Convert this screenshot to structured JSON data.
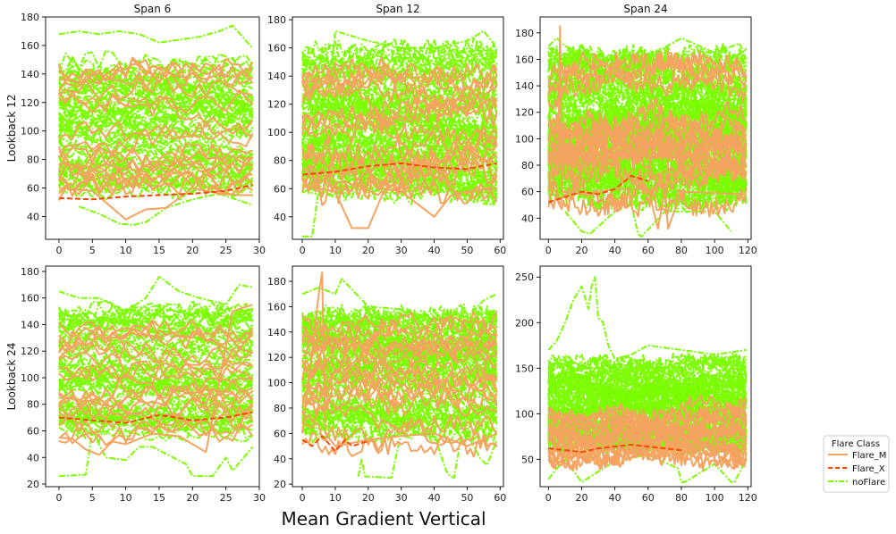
{
  "colors": {
    "Flare_M": "#f4a460",
    "Flare_X": "#ff4500",
    "noFlare": "#7cfc00"
  },
  "figure": {
    "xlabel": "Mean Gradient Vertical"
  },
  "legend": {
    "title": "Flare Class",
    "placement": "lower-right outside",
    "entries": [
      {
        "name": "Flare_M",
        "style": "solid",
        "color": "#f4a460"
      },
      {
        "name": "Flare_X",
        "style": "dashed",
        "color": "#ff4500"
      },
      {
        "name": "noFlare",
        "style": "dash-dot",
        "color": "#7cfc00"
      }
    ]
  },
  "chart_data": [
    {
      "type": "line",
      "title": "Span 6",
      "ylabel": "Lookback 12",
      "xlim": [
        -2,
        30
      ],
      "ylim": [
        24,
        180
      ],
      "xticks": [
        0,
        5,
        10,
        15,
        20,
        25,
        30
      ],
      "yticks": [
        40,
        60,
        80,
        100,
        120,
        140,
        160,
        180
      ],
      "grid": false,
      "series": [
        {
          "name": "noFlare",
          "color": "#7cfc00",
          "style": "dash-dot",
          "band": [
            58,
            150
          ],
          "center": 104,
          "count": 70,
          "n": 30
        },
        {
          "name": "noFlare",
          "color": "#7cfc00",
          "style": "dash-dot",
          "x": [
            0,
            3,
            6,
            9,
            12,
            15,
            18,
            21,
            24,
            26,
            29
          ],
          "y": [
            168,
            170,
            168,
            170,
            168,
            162,
            164,
            166,
            170,
            174,
            158
          ]
        },
        {
          "name": "noFlare",
          "color": "#7cfc00",
          "style": "dash-dot",
          "x": [
            3,
            6,
            9,
            11,
            13,
            16,
            20,
            24,
            29
          ],
          "y": [
            47,
            42,
            35,
            34,
            36,
            46,
            52,
            56,
            48
          ]
        },
        {
          "name": "Flare_M",
          "color": "#f4a460",
          "style": "solid",
          "band": [
            55,
            145
          ],
          "center": 100,
          "count": 18,
          "n": 30
        },
        {
          "name": "Flare_M",
          "color": "#f4a460",
          "style": "solid",
          "x": [
            0,
            5,
            10,
            13,
            16,
            20,
            24,
            27,
            29
          ],
          "y": [
            60,
            58,
            38,
            45,
            46,
            60,
            56,
            55,
            55
          ]
        },
        {
          "name": "Flare_X",
          "color": "#ff4500",
          "style": "dashed",
          "x": [
            0,
            5,
            10,
            15,
            20,
            25,
            29
          ],
          "y": [
            53,
            52,
            54,
            55,
            56,
            58,
            62
          ]
        }
      ]
    },
    {
      "type": "line",
      "title": "Span 12",
      "ylabel": "",
      "xlim": [
        -3,
        61
      ],
      "ylim": [
        24,
        182
      ],
      "xticks": [
        0,
        10,
        20,
        30,
        40,
        50,
        60
      ],
      "yticks": [
        40,
        60,
        80,
        100,
        120,
        140,
        160,
        180
      ],
      "grid": false,
      "series": [
        {
          "name": "noFlare",
          "color": "#7cfc00",
          "style": "dash-dot",
          "band": [
            55,
            160
          ],
          "center": 108,
          "count": 70,
          "n": 60
        },
        {
          "name": "noFlare",
          "color": "#7cfc00",
          "style": "dash-dot",
          "x": [
            0,
            3,
            5,
            10,
            20,
            30,
            40,
            50,
            55,
            59
          ],
          "y": [
            26,
            26,
            60,
            172,
            165,
            160,
            160,
            165,
            172,
            160
          ]
        },
        {
          "name": "Flare_M",
          "color": "#f4a460",
          "style": "solid",
          "band": [
            55,
            150
          ],
          "center": 100,
          "count": 18,
          "n": 60
        },
        {
          "name": "Flare_M",
          "color": "#f4a460",
          "style": "solid",
          "x": [
            0,
            10,
            15,
            20,
            25,
            30,
            40,
            45,
            50,
            59
          ],
          "y": [
            62,
            58,
            32,
            32,
            60,
            58,
            40,
            55,
            58,
            60
          ]
        },
        {
          "name": "Flare_X",
          "color": "#ff4500",
          "style": "dashed",
          "x": [
            0,
            10,
            20,
            30,
            40,
            50,
            59
          ],
          "y": [
            70,
            72,
            76,
            78,
            75,
            74,
            78
          ]
        }
      ]
    },
    {
      "type": "line",
      "title": "Span 24",
      "ylabel": "",
      "xlim": [
        -5,
        122
      ],
      "ylim": [
        24,
        192
      ],
      "xticks": [
        0,
        20,
        40,
        60,
        80,
        100,
        120
      ],
      "yticks": [
        40,
        60,
        80,
        100,
        120,
        140,
        160,
        180
      ],
      "grid": false,
      "series": [
        {
          "name": "noFlare",
          "color": "#7cfc00",
          "style": "dash-dot",
          "band": [
            52,
            165
          ],
          "center": 110,
          "count": 70,
          "n": 120
        },
        {
          "name": "noFlare",
          "color": "#7cfc00",
          "style": "dash-dot",
          "x": [
            0,
            5,
            10,
            20,
            40,
            60,
            80,
            100,
            115,
            119
          ],
          "y": [
            170,
            176,
            170,
            165,
            160,
            162,
            176,
            165,
            172,
            160
          ]
        },
        {
          "name": "noFlare",
          "color": "#7cfc00",
          "style": "dash-dot",
          "x": [
            10,
            20,
            25,
            40,
            50,
            54,
            56,
            70,
            100,
            110
          ],
          "y": [
            45,
            30,
            28,
            45,
            50,
            28,
            26,
            45,
            45,
            30
          ]
        },
        {
          "name": "Flare_M",
          "color": "#f4a460",
          "style": "solid",
          "band": [
            48,
            160
          ],
          "center": 100,
          "count": 18,
          "n": 120
        },
        {
          "name": "Flare_M",
          "color": "#f4a460",
          "style": "solid",
          "x": [
            0,
            3,
            6,
            7,
            8,
            20,
            40,
            60,
            66,
            70,
            72,
            80,
            119
          ],
          "y": [
            48,
            70,
            88,
            185,
            60,
            58,
            62,
            62,
            32,
            62,
            32,
            60,
            58
          ]
        },
        {
          "name": "Flare_X",
          "color": "#ff4500",
          "style": "dashed",
          "x": [
            0,
            10,
            20,
            30,
            40,
            50,
            60
          ],
          "y": [
            52,
            56,
            60,
            58,
            62,
            72,
            68
          ]
        }
      ]
    },
    {
      "type": "line",
      "title": "",
      "ylabel": "Lookback 24",
      "xlim": [
        -2,
        30
      ],
      "ylim": [
        18,
        184
      ],
      "xticks": [
        0,
        5,
        10,
        15,
        20,
        25,
        30
      ],
      "yticks": [
        20,
        40,
        60,
        80,
        100,
        120,
        140,
        160,
        180
      ],
      "grid": false,
      "series": [
        {
          "name": "noFlare",
          "color": "#7cfc00",
          "style": "dash-dot",
          "band": [
            58,
            152
          ],
          "center": 106,
          "count": 70,
          "n": 30
        },
        {
          "name": "noFlare",
          "color": "#7cfc00",
          "style": "dash-dot",
          "x": [
            0,
            3,
            6,
            10,
            13,
            15,
            18,
            21,
            25,
            27,
            29
          ],
          "y": [
            165,
            160,
            160,
            150,
            160,
            176,
            165,
            160,
            155,
            170,
            168
          ]
        },
        {
          "name": "noFlare",
          "color": "#7cfc00",
          "style": "dash-dot",
          "x": [
            0,
            4,
            5,
            7,
            10,
            12,
            14,
            19,
            20,
            23,
            25,
            26,
            29
          ],
          "y": [
            26,
            27,
            60,
            40,
            38,
            48,
            48,
            35,
            26,
            26,
            40,
            30,
            48
          ]
        },
        {
          "name": "Flare_M",
          "color": "#f4a460",
          "style": "solid",
          "band": [
            52,
            150
          ],
          "center": 100,
          "count": 18,
          "n": 30
        },
        {
          "name": "Flare_M",
          "color": "#f4a460",
          "style": "solid",
          "x": [
            0,
            2,
            4,
            6,
            8,
            10,
            14,
            18,
            22,
            26,
            29
          ],
          "y": [
            55,
            54,
            46,
            42,
            52,
            50,
            58,
            56,
            44,
            150,
            155
          ]
        },
        {
          "name": "Flare_X",
          "color": "#ff4500",
          "style": "dashed",
          "x": [
            0,
            5,
            10,
            15,
            20,
            25,
            29
          ],
          "y": [
            70,
            68,
            66,
            72,
            68,
            70,
            74
          ]
        }
      ]
    },
    {
      "type": "line",
      "title": "",
      "ylabel": "",
      "xlim": [
        -3,
        61
      ],
      "ylim": [
        18,
        192
      ],
      "xticks": [
        0,
        10,
        20,
        30,
        40,
        50,
        60
      ],
      "yticks": [
        20,
        40,
        60,
        80,
        100,
        120,
        140,
        160,
        180
      ],
      "grid": false,
      "series": [
        {
          "name": "noFlare",
          "color": "#7cfc00",
          "style": "dash-dot",
          "band": [
            58,
            155
          ],
          "center": 106,
          "count": 70,
          "n": 60
        },
        {
          "name": "noFlare",
          "color": "#7cfc00",
          "style": "dash-dot",
          "x": [
            0,
            5,
            10,
            12,
            20,
            30,
            40,
            50,
            55,
            59
          ],
          "y": [
            170,
            175,
            170,
            182,
            160,
            158,
            150,
            152,
            165,
            170
          ]
        },
        {
          "name": "noFlare",
          "color": "#7cfc00",
          "style": "dash-dot",
          "x": [
            17,
            18,
            19,
            20,
            27,
            30,
            40,
            44,
            46,
            48,
            50,
            54,
            56,
            59
          ],
          "y": [
            26,
            40,
            26,
            26,
            25,
            60,
            58,
            28,
            25,
            55,
            60,
            40,
            35,
            55
          ]
        },
        {
          "name": "Flare_M",
          "color": "#f4a460",
          "style": "solid",
          "band": [
            48,
            150
          ],
          "center": 100,
          "count": 18,
          "n": 60
        },
        {
          "name": "Flare_M",
          "color": "#f4a460",
          "style": "solid",
          "x": [
            0,
            5,
            6,
            7,
            10,
            20,
            30,
            40,
            50,
            59
          ],
          "y": [
            60,
            170,
            187,
            60,
            50,
            55,
            58,
            60,
            50,
            60
          ]
        },
        {
          "name": "Flare_X",
          "color": "#ff4500",
          "style": "dashed",
          "x": [
            0,
            3,
            6,
            8,
            10,
            13,
            15,
            20
          ],
          "y": [
            55,
            50,
            58,
            52,
            46,
            55,
            50,
            54
          ]
        }
      ]
    },
    {
      "type": "line",
      "title": "",
      "ylabel": "",
      "xlim": [
        -5,
        122
      ],
      "ylim": [
        20,
        262
      ],
      "xticks": [
        0,
        20,
        40,
        60,
        80,
        100,
        120
      ],
      "yticks": [
        50,
        100,
        150,
        200,
        250
      ],
      "grid": false,
      "series": [
        {
          "name": "noFlare",
          "color": "#7cfc00",
          "style": "dash-dot",
          "band": [
            62,
            160
          ],
          "center": 110,
          "count": 70,
          "n": 120
        },
        {
          "name": "noFlare",
          "color": "#7cfc00",
          "style": "dash-dot",
          "x": [
            0,
            5,
            10,
            15,
            20,
            24,
            26,
            28,
            30,
            33,
            36,
            40,
            50,
            60,
            80,
            100,
            119
          ],
          "y": [
            170,
            180,
            200,
            225,
            240,
            215,
            240,
            250,
            205,
            200,
            175,
            160,
            165,
            175,
            170,
            165,
            170
          ]
        },
        {
          "name": "noFlare",
          "color": "#7cfc00",
          "style": "dash-dot",
          "x": [
            0,
            5,
            10,
            20,
            40,
            60,
            78,
            80,
            82,
            100,
            110,
            112,
            119
          ],
          "y": [
            28,
            40,
            50,
            25,
            48,
            55,
            40,
            25,
            25,
            45,
            25,
            25,
            50
          ]
        },
        {
          "name": "Flare_M",
          "color": "#f4a460",
          "style": "solid",
          "band": [
            45,
            115
          ],
          "center": 75,
          "count": 18,
          "n": 120
        },
        {
          "name": "Flare_X",
          "color": "#ff4500",
          "style": "dashed",
          "x": [
            0,
            10,
            20,
            30,
            40,
            50,
            60,
            70,
            80
          ],
          "y": [
            62,
            60,
            58,
            62,
            64,
            66,
            64,
            62,
            60
          ]
        }
      ]
    }
  ]
}
